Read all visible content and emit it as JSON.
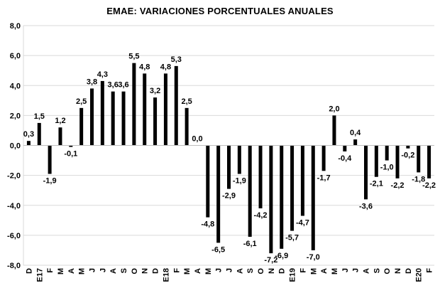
{
  "chart_data": {
    "type": "bar",
    "title": "EMAE: VARIACIONES PORCENTUALES ANUALES",
    "xlabel": "",
    "ylabel": "",
    "ylim": [
      -8.0,
      8.0
    ],
    "yticks": [
      "8,0",
      "6,0",
      "4,0",
      "2,0",
      "0,0",
      "-2,0",
      "-4,0",
      "-6,0",
      "-8,0"
    ],
    "ytick_values": [
      8,
      6,
      4,
      2,
      0,
      -2,
      -4,
      -6,
      -8
    ],
    "grid": true,
    "bar_color": "#000000",
    "categories": [
      "D",
      "E17",
      "F",
      "M",
      "A",
      "M",
      "J",
      "J",
      "A",
      "S",
      "O",
      "N",
      "D",
      "E18",
      "F",
      "M",
      "A",
      "M",
      "J",
      "J",
      "A",
      "S",
      "O",
      "N",
      "D",
      "E19",
      "F",
      "M",
      "A",
      "M",
      "J",
      "J",
      "A",
      "S",
      "O",
      "N",
      "D",
      "E20",
      "F"
    ],
    "values": [
      0.3,
      1.5,
      -1.9,
      1.2,
      -0.1,
      2.5,
      3.8,
      4.3,
      3.6,
      3.6,
      5.5,
      4.8,
      3.2,
      4.8,
      5.3,
      2.5,
      0.0,
      -4.8,
      -6.5,
      -2.9,
      -1.9,
      -6.1,
      -4.2,
      -7.2,
      -6.9,
      -5.7,
      -4.7,
      -7.0,
      -1.7,
      2.0,
      -0.4,
      0.4,
      -3.6,
      -2.1,
      -1.0,
      -2.2,
      -0.2,
      -1.8,
      -2.2
    ],
    "labels": [
      "0,3",
      "1,5",
      "-1,9",
      "1,2",
      "-0,1",
      "2,5",
      "3,8",
      "4,3",
      "3,6",
      "3,6",
      "5,5",
      "4,8",
      "3,2",
      "4,8",
      "5,3",
      "2,5",
      "0,0",
      "-4,8",
      "-6,5",
      "-2,9",
      "-1,9",
      "-6,1",
      "-4,2",
      "-7,2",
      "-6,9",
      "-5,7",
      "-4,7",
      "-7,0",
      "-1,7",
      "2,0",
      "-0,4",
      "0,4",
      "-3,6",
      "-2,1",
      "-1,0",
      "-2,2",
      "-0,2",
      "-1,8",
      "-2,2"
    ],
    "label_shown": [
      true,
      true,
      true,
      true,
      true,
      true,
      true,
      true,
      true,
      true,
      true,
      true,
      true,
      true,
      true,
      true,
      true,
      true,
      true,
      true,
      true,
      true,
      true,
      true,
      true,
      true,
      true,
      true,
      true,
      true,
      true,
      true,
      true,
      true,
      true,
      true,
      true,
      true,
      true
    ]
  }
}
